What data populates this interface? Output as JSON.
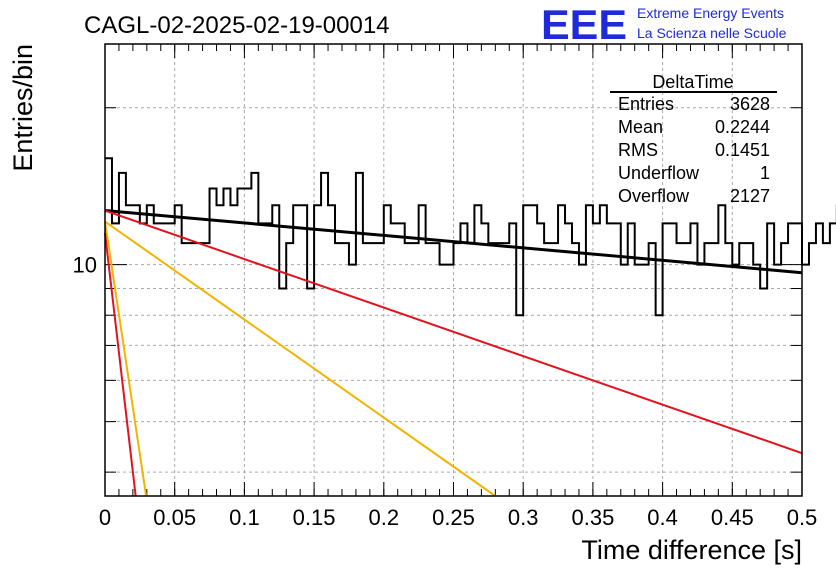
{
  "header": {
    "title": "CAGL-02-2025-02-19-00014",
    "logo_text": "EEE",
    "org_line1": "Extreme Energy Events",
    "org_line2": "La Scienza nelle Scuole",
    "logo_color": "#1f2bd6"
  },
  "stats_box": {
    "title": "DeltaTime",
    "rows": [
      {
        "label": "Entries",
        "value": "3628"
      },
      {
        "label": "Mean",
        "value": "0.2244"
      },
      {
        "label": "RMS",
        "value": "0.1451"
      },
      {
        "label": "Underflow",
        "value": "1"
      },
      {
        "label": "Overflow",
        "value": "2127"
      }
    ]
  },
  "chart_data": {
    "type": "histogram",
    "xlabel": "Time difference [s]",
    "ylabel": "Entries/bin",
    "xlim": [
      0,
      0.5
    ],
    "ylim": [
      3.6,
      26.5
    ],
    "log_y": true,
    "grid": true,
    "x_ticks": [
      "0",
      "0.05",
      "0.1",
      "0.15",
      "0.2",
      "0.25",
      "0.3",
      "0.35",
      "0.4",
      "0.45",
      "0.5"
    ],
    "y_ticks": [
      "10"
    ],
    "bin_width": 0.005,
    "counts": [
      16,
      12,
      15,
      13,
      13,
      12,
      13,
      12,
      12,
      12,
      13,
      11,
      11,
      11,
      11,
      14,
      13,
      14,
      13,
      14,
      14,
      15,
      12,
      12,
      13,
      9,
      11,
      13,
      13,
      9,
      13,
      15,
      13,
      11,
      11,
      10,
      15,
      11,
      11,
      11,
      13,
      12,
      12,
      11,
      11,
      13,
      11,
      11,
      10,
      10,
      11,
      12,
      11,
      13,
      12,
      11,
      11,
      11,
      12,
      8,
      13,
      13,
      12,
      11,
      11,
      13,
      12,
      11,
      10,
      13,
      12,
      13,
      12,
      12,
      10,
      12,
      10,
      10,
      11,
      8,
      12,
      12,
      11,
      11,
      12,
      10,
      11,
      11,
      13,
      11,
      10,
      11,
      11,
      10,
      9,
      12,
      10,
      11,
      12,
      12,
      10,
      11,
      12,
      11,
      12,
      13,
      10,
      11,
      11,
      10,
      12,
      11,
      11,
      12,
      10,
      10,
      12,
      11,
      12,
      12,
      12,
      11,
      11,
      12,
      12,
      11,
      9,
      9,
      11,
      12,
      10,
      11,
      10,
      11,
      12,
      9,
      7,
      11,
      11,
      11,
      12,
      8,
      10,
      8,
      12,
      11,
      12,
      12,
      10,
      9,
      10,
      10,
      10,
      12,
      12,
      11,
      11,
      11,
      11,
      12
    ],
    "series": [
      {
        "x": [
          0,
          0.5
        ],
        "y": [
          12.7,
          9.65
        ],
        "color": "#000000"
      },
      {
        "x": [
          0,
          0.5
        ],
        "y": [
          12.7,
          4.35
        ],
        "color": "#e0141e"
      },
      {
        "x": [
          0,
          0.28
        ],
        "y": [
          12.1,
          3.6
        ],
        "color": "#f2b400"
      },
      {
        "x": [
          0,
          0.0295
        ],
        "y": [
          12.1,
          3.6
        ],
        "color": "#f2b400"
      },
      {
        "x": [
          0,
          0.022
        ],
        "y": [
          11.5,
          3.6
        ],
        "color": "#e0141e"
      }
    ]
  }
}
